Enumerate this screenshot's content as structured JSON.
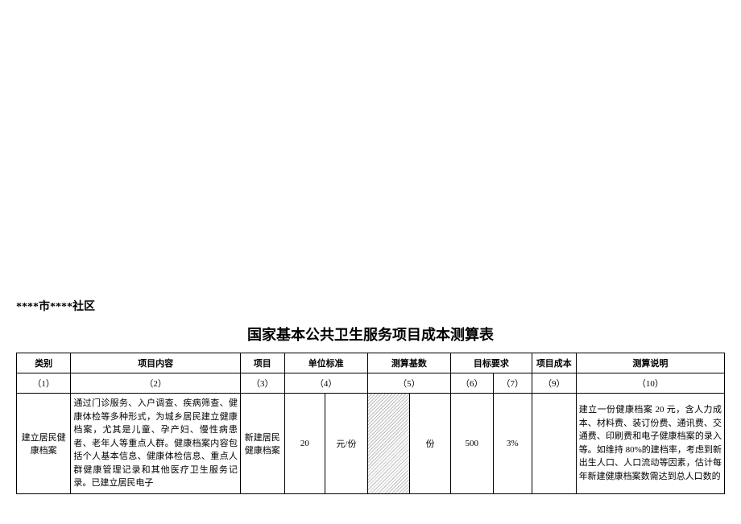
{
  "location_line": "****市****社区",
  "doc_title": "国家基本公共卫生服务项目成本测算表",
  "header": {
    "c1": "类别",
    "c2": "项目内容",
    "c3": "项目",
    "c4": "单位标准",
    "c5": "测算基数",
    "c6_7": "目标要求",
    "c9": "项目成本",
    "c10": "测算说明"
  },
  "subheader": {
    "c1": "（1）",
    "c2": "（2）",
    "c3": "（3）",
    "c4": "（4）",
    "c5": "（5）",
    "c6": "（6）",
    "c7": "（7）",
    "c9": "（9）",
    "c10": "（10）"
  },
  "row1": {
    "category": "建立居民健康档案",
    "content": "通过门诊服务、入户调查、疾病筛查、健康体检等多种形式，为城乡居民建立健康档案，尤其是儿童、孕产妇、慢性病患者、老年人等重点人群。健康档案内容包括个人基本信息、健康体检信息、重点人群健康管理记录和其他医疗卫生服务记录。已建立居民电子",
    "project": "新建居民健康档案",
    "unit_value": "20",
    "unit_label": "元/份",
    "base_unit": "份",
    "target_a": "500",
    "target_b": "3%",
    "cost": "",
    "explain": "建立一份健康档案 20 元，含人力成本、材料费、装订份费、通讯费、交通费、印刷费和电子健康档案的录入等。如维持 80%的建档率，考虑到新出生人口、人口流动等因素，估计每年新建健康档案数需达到总人口数的"
  },
  "style": {
    "bg": "#ffffff",
    "text": "#000000",
    "border": "#000000",
    "hatch_fg": "#bdbdbd",
    "hatch_bg": "#ffffff",
    "title_fontsize_pt": 18,
    "body_fontsize_pt": 11,
    "location_fontsize_pt": 14
  }
}
